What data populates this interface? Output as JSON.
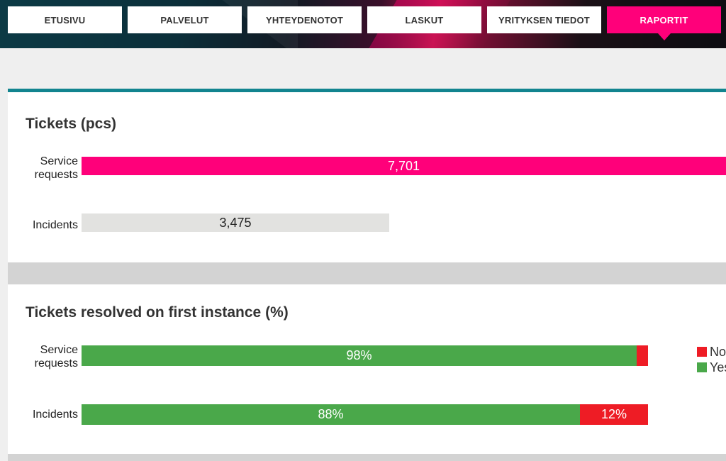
{
  "nav": {
    "items": [
      {
        "label": "ETUSIVU",
        "active": false
      },
      {
        "label": "PALVELUT",
        "active": false
      },
      {
        "label": "YHTEYDENOTOT",
        "active": false
      },
      {
        "label": "LASKUT",
        "active": false
      },
      {
        "label": "YRITYKSEN TIEDOT",
        "active": false
      },
      {
        "label": "RAPORTIT",
        "active": true
      }
    ],
    "active_color": "#ff007a"
  },
  "colors": {
    "accent_teal": "#12848f",
    "pink": "#ff007a",
    "grey_bar": "#e2e2e0",
    "green": "#4aa84a",
    "red": "#ee1c25"
  },
  "chart_data": [
    {
      "type": "bar",
      "title": "Tickets (pcs)",
      "categories": [
        "Service requests",
        "Incidents"
      ],
      "values": [
        7701,
        3475
      ],
      "value_labels": [
        "7,701",
        "3,475"
      ]
    },
    {
      "type": "bar",
      "title": "Tickets resolved on first instance (%)",
      "categories": [
        "Service requests",
        "Incidents"
      ],
      "series": [
        {
          "name": "Yes",
          "values": [
            98,
            88
          ],
          "value_labels": [
            "98%",
            "88%"
          ]
        },
        {
          "name": "No",
          "values": [
            2,
            12
          ],
          "value_labels": [
            "",
            "12%"
          ]
        }
      ],
      "legend": [
        "No",
        "Yes"
      ],
      "legend_position": "right"
    }
  ]
}
